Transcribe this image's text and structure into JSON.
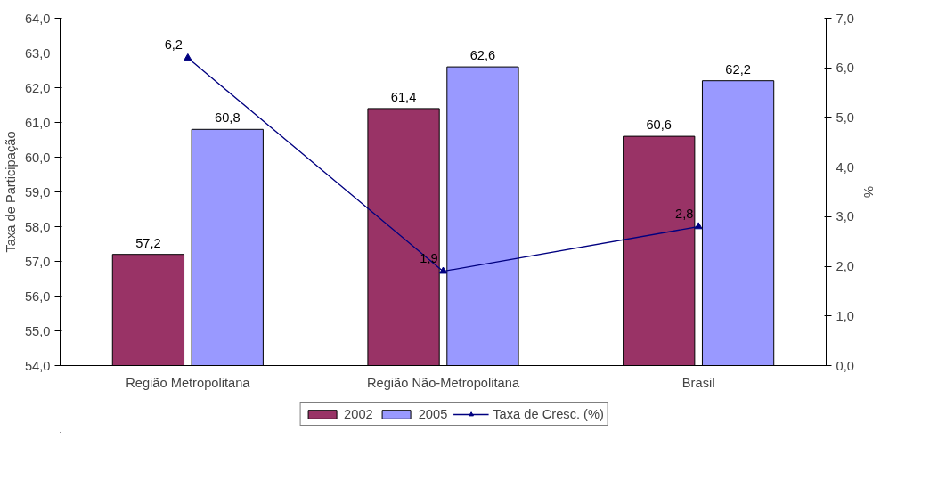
{
  "chart_data": {
    "type": "bar",
    "ylabel": "Taxa de Participação",
    "y2label": "%",
    "categories": [
      "Região Metropolitana",
      "Região Não-Metropolitana",
      "Brasil"
    ],
    "series": [
      {
        "name": "2002",
        "color": "#993366",
        "values": [
          57.2,
          61.4,
          60.6
        ],
        "value_labels": [
          "57,2",
          "61,4",
          "60,6"
        ]
      },
      {
        "name": "2005",
        "color": "#9999ff",
        "values": [
          60.8,
          62.6,
          62.2
        ],
        "value_labels": [
          "60,8",
          "62,6",
          "62,2"
        ]
      },
      {
        "name": "Taxa de Cresc. (%)",
        "type": "line",
        "axis": "y2",
        "color": "#000080",
        "marker": "triangle",
        "values": [
          6.2,
          1.9,
          2.8
        ],
        "value_labels": [
          "6,2",
          "1,9",
          "2,8"
        ]
      }
    ],
    "ylim": [
      54,
      64
    ],
    "yticks": [
      {
        "value": 54,
        "label": "54,0"
      },
      {
        "value": 55,
        "label": "55,0"
      },
      {
        "value": 56,
        "label": "56,0"
      },
      {
        "value": 57,
        "label": "57,0"
      },
      {
        "value": 58,
        "label": "58,0"
      },
      {
        "value": 59,
        "label": "59,0"
      },
      {
        "value": 60,
        "label": "60,0"
      },
      {
        "value": 61,
        "label": "61,0"
      },
      {
        "value": 62,
        "label": "62,0"
      },
      {
        "value": 63,
        "label": "63,0"
      },
      {
        "value": 64,
        "label": "64,0"
      }
    ],
    "y2lim": [
      0,
      7
    ],
    "y2ticks": [
      {
        "value": 0,
        "label": "0,0"
      },
      {
        "value": 1,
        "label": "1,0"
      },
      {
        "value": 2,
        "label": "2,0"
      },
      {
        "value": 3,
        "label": "3,0"
      },
      {
        "value": 4,
        "label": "4,0"
      },
      {
        "value": 5,
        "label": "5,0"
      },
      {
        "value": 6,
        "label": "6,0"
      },
      {
        "value": 7,
        "label": "7,0"
      }
    ],
    "grid": false,
    "legend": "bottom"
  }
}
